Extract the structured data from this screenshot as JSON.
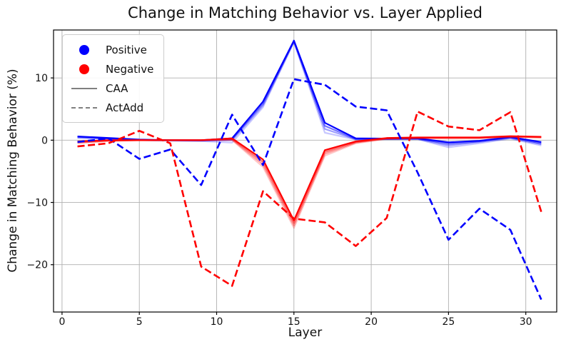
{
  "figure": {
    "background": "#ffffff"
  },
  "colors": {
    "positive": "#0000ff",
    "negative": "#ff0000",
    "legend_line": "#808080",
    "grid": "#b0b0b0",
    "spine": "#000000",
    "text": "#111111"
  },
  "legend": {
    "items": [
      {
        "label": "Positive",
        "marker": "circle",
        "color": "#0000ff"
      },
      {
        "label": "Negative",
        "marker": "circle",
        "color": "#ff0000"
      },
      {
        "label": "CAA",
        "marker": "solid-line",
        "color": "#808080"
      },
      {
        "label": "ActAdd",
        "marker": "dashed-line",
        "color": "#808080"
      }
    ],
    "position": "upper-left"
  },
  "chart_data": {
    "type": "line",
    "title": "Change in Matching Behavior vs. Layer Applied",
    "xlabel": "Layer",
    "ylabel": "Change in Matching Behavior (%)",
    "grid": true,
    "legend_position": "upper left",
    "xlim": [
      -0.55,
      32.0
    ],
    "ylim": [
      -27.6,
      17.7
    ],
    "x_ticks": [
      0,
      5,
      10,
      15,
      20,
      25,
      30
    ],
    "x_tick_labels": [
      "0",
      "5",
      "10",
      "15",
      "20",
      "25",
      "30"
    ],
    "y_ticks": [
      10,
      0,
      -10,
      -20
    ],
    "y_tick_labels": [
      "10",
      "0",
      "−10",
      "−20"
    ],
    "x": [
      1,
      3,
      5,
      7,
      9,
      11,
      13,
      15,
      17,
      19,
      21,
      23,
      25,
      27,
      29,
      31
    ],
    "series": [
      {
        "name": "Positive CAA 4",
        "group": "CAA",
        "color": "#0000ff",
        "style": "solid",
        "opacity": 0.22,
        "width": 2.2,
        "values": [
          0.35,
          0.2,
          0.0,
          -0.1,
          -0.15,
          -0.4,
          5.3,
          15.75,
          1.2,
          0.1,
          0.15,
          0.15,
          -1.15,
          -0.5,
          0.25,
          -0.85
        ]
      },
      {
        "name": "Positive CAA 3",
        "group": "CAA",
        "color": "#0000ff",
        "style": "solid",
        "opacity": 0.38,
        "width": 2.2,
        "values": [
          0.45,
          0.25,
          0.0,
          -0.05,
          -0.1,
          0.0,
          5.6,
          15.85,
          1.8,
          0.15,
          0.2,
          0.2,
          -0.85,
          -0.3,
          0.35,
          -0.65
        ]
      },
      {
        "name": "Positive CAA 2",
        "group": "CAA",
        "color": "#0000ff",
        "style": "solid",
        "opacity": 0.55,
        "width": 2.2,
        "values": [
          0.55,
          0.3,
          0.05,
          0.0,
          -0.05,
          0.15,
          5.9,
          15.9,
          2.3,
          0.2,
          0.2,
          0.25,
          -0.6,
          -0.2,
          0.45,
          -0.5
        ]
      },
      {
        "name": "Positive CAA 1",
        "group": "CAA",
        "color": "#0000ff",
        "style": "solid",
        "opacity": 1.0,
        "width": 2.2,
        "values": [
          0.6,
          0.35,
          0.1,
          0.0,
          0.0,
          0.3,
          6.2,
          16.0,
          2.8,
          0.3,
          0.25,
          0.3,
          -0.35,
          -0.1,
          0.5,
          -0.3
        ]
      },
      {
        "name": "Negative CAA 4",
        "group": "CAA",
        "color": "#ff0000",
        "style": "solid",
        "opacity": 0.22,
        "width": 2.2,
        "values": [
          -0.5,
          -0.15,
          0.0,
          0.0,
          0.0,
          0.0,
          -4.3,
          -14.1,
          -2.5,
          -0.5,
          0.2,
          0.3,
          0.3,
          0.3,
          0.5,
          0.4
        ]
      },
      {
        "name": "Negative CAA 3",
        "group": "CAA",
        "color": "#ff0000",
        "style": "solid",
        "opacity": 0.38,
        "width": 2.2,
        "values": [
          -0.4,
          -0.1,
          0.0,
          0.0,
          0.0,
          0.1,
          -3.9,
          -13.7,
          -2.2,
          -0.4,
          0.25,
          0.35,
          0.35,
          0.35,
          0.55,
          0.45
        ]
      },
      {
        "name": "Negative CAA 2",
        "group": "CAA",
        "color": "#ff0000",
        "style": "solid",
        "opacity": 0.55,
        "width": 2.2,
        "values": [
          -0.3,
          -0.05,
          0.0,
          0.0,
          0.0,
          0.2,
          -3.5,
          -13.3,
          -1.9,
          -0.3,
          0.3,
          0.4,
          0.4,
          0.4,
          0.6,
          0.5
        ]
      },
      {
        "name": "Negative CAA 1",
        "group": "CAA",
        "color": "#ff0000",
        "style": "solid",
        "opacity": 1.0,
        "width": 2.2,
        "values": [
          -0.2,
          0.0,
          0.0,
          0.0,
          0.0,
          0.3,
          -3.1,
          -12.9,
          -1.6,
          -0.2,
          0.35,
          0.45,
          0.45,
          0.45,
          0.65,
          0.55
        ]
      },
      {
        "name": "Positive ActAdd",
        "group": "ActAdd",
        "color": "#0000ff",
        "style": "dashed",
        "opacity": 1.0,
        "width": 2.6,
        "values": [
          -0.3,
          0.3,
          -3.0,
          -1.5,
          -7.2,
          4.1,
          -4.0,
          9.8,
          8.9,
          5.4,
          4.8,
          -5.2,
          -16.0,
          -11.0,
          -14.4,
          -25.6
        ]
      },
      {
        "name": "Negative ActAdd",
        "group": "ActAdd",
        "color": "#ff0000",
        "style": "dashed",
        "opacity": 1.0,
        "width": 2.6,
        "values": [
          -1.0,
          -0.5,
          1.5,
          -0.5,
          -20.3,
          -23.4,
          -8.2,
          -12.6,
          -13.2,
          -17.0,
          -12.5,
          4.6,
          2.2,
          1.6,
          4.5,
          -11.5
        ]
      }
    ]
  }
}
